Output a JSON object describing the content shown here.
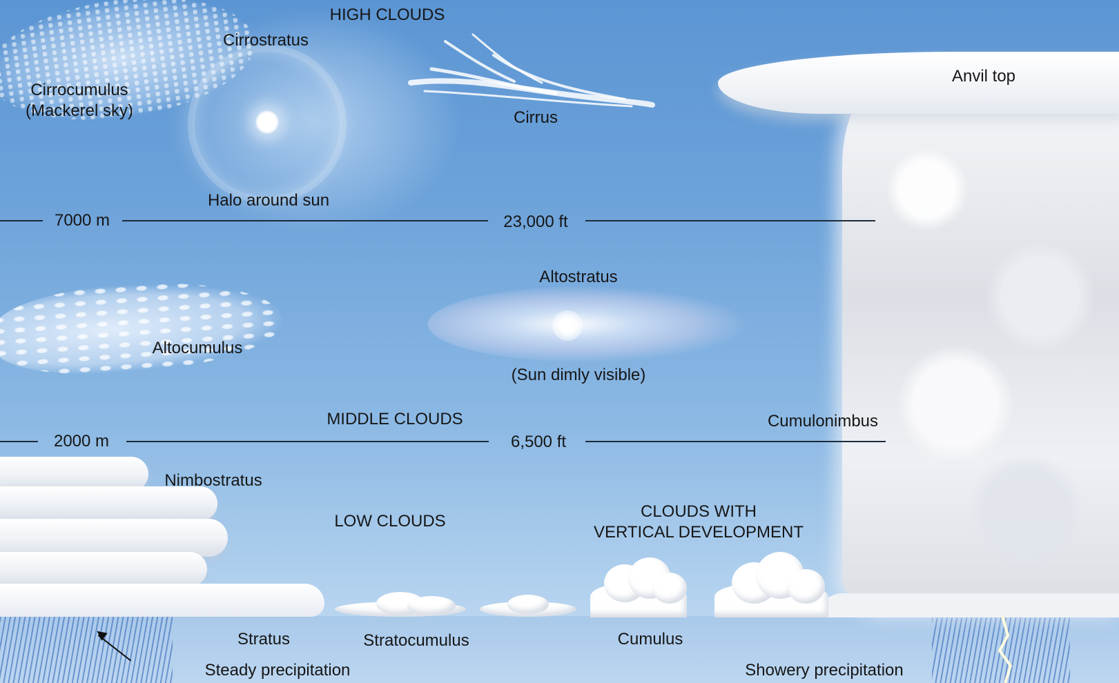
{
  "diagram": {
    "sections": {
      "high": "HIGH CLOUDS",
      "middle": "MIDDLE CLOUDS",
      "low": "LOW CLOUDS",
      "vertical": "CLOUDS WITH\nVERTICAL DEVELOPMENT"
    },
    "altitudes": {
      "upper_m": "7000 m",
      "upper_ft": "23,000 ft",
      "lower_m": "2000 m",
      "lower_ft": "6,500 ft"
    },
    "labels": {
      "cirrostratus": "Cirrostratus",
      "cirrocumulus": "Cirrocumulus\n(Mackerel sky)",
      "cirrus": "Cirrus",
      "halo": "Halo around sun",
      "anvil": "Anvil top",
      "altostratus": "Altostratus",
      "sun_dim": "(Sun dimly visible)",
      "altocumulus": "Altocumulus",
      "cumulonimbus": "Cumulonimbus",
      "nimbostratus": "Nimbostratus",
      "stratus": "Stratus",
      "stratocumulus": "Stratocumulus",
      "cumulus": "Cumulus",
      "steady_precip": "Steady precipitation",
      "showery_precip": "Showery precipitation"
    },
    "colors": {
      "sky_top": "#5b95d3",
      "sky_bottom": "#c9def3",
      "cloud": "#ffffff",
      "text": "#161616",
      "rain": "#2d5fb4",
      "lightning": "#fff8c8"
    },
    "icons": {
      "lightning": "lightning-bolt-icon",
      "arrow": "arrow-icon"
    }
  }
}
